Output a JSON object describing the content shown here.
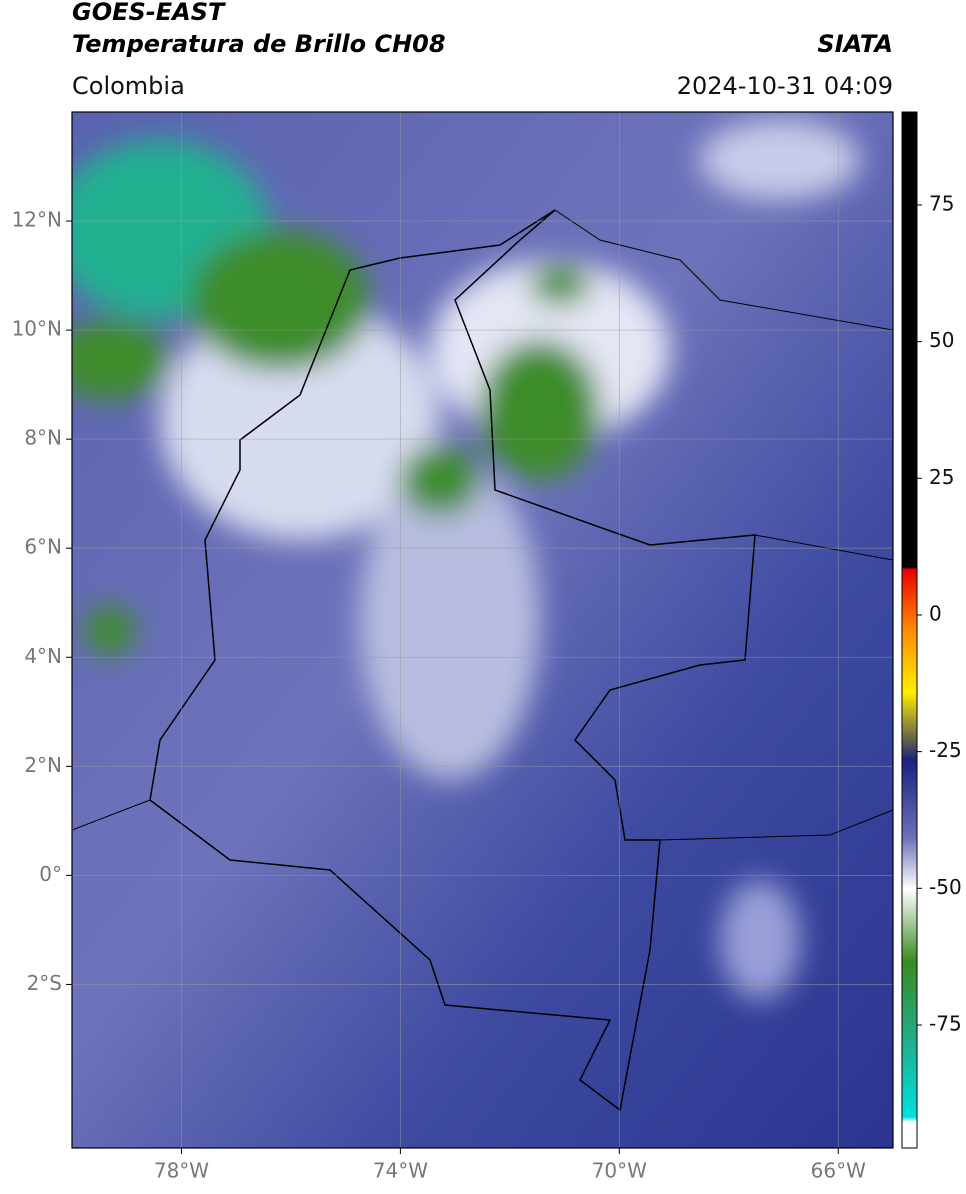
{
  "header": {
    "title_line1": "GOES-EAST",
    "title_line2": "Temperatura de Brillo CH08",
    "source": "SIATA",
    "region": "Colombia",
    "datetime": "2024-10-31 04:09"
  },
  "map": {
    "xlim": [
      -80,
      -65
    ],
    "ylim": [
      -5,
      14
    ],
    "xticks": [
      {
        "value": -78,
        "label": "78°W"
      },
      {
        "value": -74,
        "label": "74°W"
      },
      {
        "value": -70,
        "label": "70°W"
      },
      {
        "value": -66,
        "label": "66°W"
      }
    ],
    "yticks": [
      {
        "value": 12,
        "label": "12°N"
      },
      {
        "value": 10,
        "label": "10°N"
      },
      {
        "value": 8,
        "label": "8°N"
      },
      {
        "value": 6,
        "label": "6°N"
      },
      {
        "value": 4,
        "label": "4°N"
      },
      {
        "value": 2,
        "label": "2°N"
      },
      {
        "value": 0,
        "label": "0°"
      },
      {
        "value": -2,
        "label": "2°S"
      }
    ]
  },
  "colorbar": {
    "lim": [
      -97.5,
      92
    ],
    "ticks": [
      75,
      50,
      25,
      0,
      -25,
      -50,
      -75
    ]
  }
}
